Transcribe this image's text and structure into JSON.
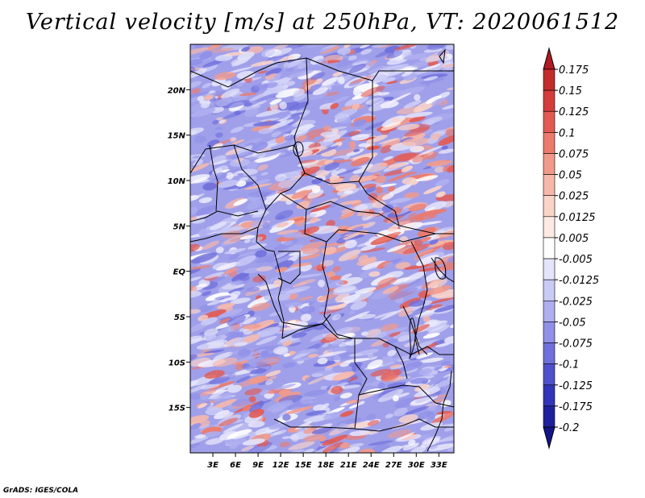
{
  "title": "Vertical velocity [m/s] at 250hPa, VT: 2020061512",
  "credit": "GrADS: IGES/COLA",
  "map": {
    "lat_range": [
      -20,
      25
    ],
    "lon_range": [
      0,
      35
    ],
    "lat_labels": [
      "20N",
      "15N",
      "10N",
      "5N",
      "EQ",
      "5S",
      "10S",
      "15S"
    ],
    "lat_values": [
      20,
      15,
      10,
      5,
      0,
      -5,
      -10,
      -15
    ],
    "lon_labels": [
      "3E",
      "6E",
      "9E",
      "12E",
      "15E",
      "18E",
      "21E",
      "24E",
      "27E",
      "30E",
      "33E"
    ],
    "lon_values": [
      3,
      6,
      9,
      12,
      15,
      18,
      21,
      24,
      27,
      30,
      33
    ]
  },
  "colorbar": {
    "labels": [
      "0.175",
      "0.15",
      "0.125",
      "0.1",
      "0.075",
      "0.05",
      "0.025",
      "0.0125",
      "0.005",
      "-0.005",
      "-0.0125",
      "-0.025",
      "-0.05",
      "-0.075",
      "-0.1",
      "-0.125",
      "-0.175",
      "-0.2"
    ],
    "colors": [
      "#b01c24",
      "#c42c2c",
      "#d53c3c",
      "#e35a52",
      "#ec7a6c",
      "#f29a8a",
      "#f7b8aa",
      "#fbd4c8",
      "#fdeae4",
      "#ffffff",
      "#e4e4fb",
      "#cacaf6",
      "#aeaef0",
      "#9090e8",
      "#7070dc",
      "#5050cc",
      "#3434b8",
      "#20209e",
      "#14148a"
    ]
  },
  "colors": {
    "positive": "#e07060",
    "negative": "#6c6ce0",
    "background_field": "#9a9ae8"
  }
}
